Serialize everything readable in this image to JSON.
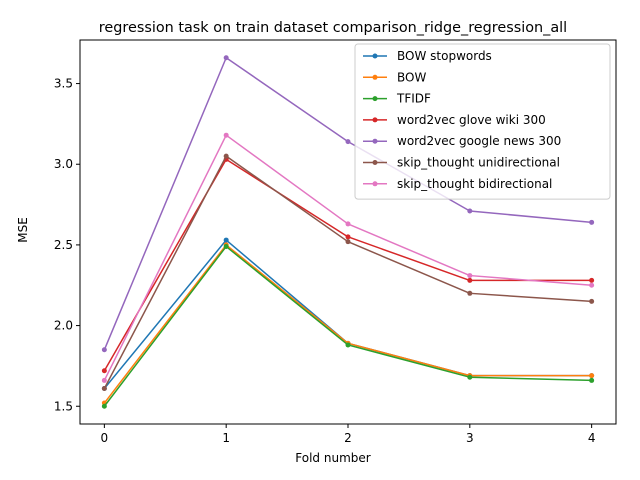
{
  "chart_data": {
    "type": "line",
    "title": "regression task on train dataset comparison_ridge_regression_all",
    "xlabel": "Fold number",
    "ylabel": "MSE",
    "x": [
      0,
      1,
      2,
      3,
      4
    ],
    "xticks": [
      "0",
      "1",
      "2",
      "3",
      "4"
    ],
    "yticks": [
      "1.5",
      "2.0",
      "2.5",
      "3.0",
      "3.5"
    ],
    "xlim": [
      -0.2,
      4.2
    ],
    "ylim": [
      1.39,
      3.77
    ],
    "grid": false,
    "legend_position": "upper right",
    "series": [
      {
        "name": "BOW stopwords",
        "color": "#1f77b4",
        "values": [
          1.61,
          2.53,
          1.89,
          1.69,
          1.69
        ]
      },
      {
        "name": "BOW",
        "color": "#ff7f0e",
        "values": [
          1.52,
          2.5,
          1.89,
          1.69,
          1.69
        ]
      },
      {
        "name": "TFIDF",
        "color": "#2ca02c",
        "values": [
          1.5,
          2.49,
          1.88,
          1.68,
          1.66
        ]
      },
      {
        "name": "word2vec glove wiki 300",
        "color": "#d62728",
        "values": [
          1.72,
          3.03,
          2.55,
          2.28,
          2.28
        ]
      },
      {
        "name": "word2vec google news 300",
        "color": "#9467bd",
        "values": [
          1.85,
          3.66,
          3.14,
          2.71,
          2.64
        ]
      },
      {
        "name": "skip_thought unidirectional",
        "color": "#8c564b",
        "values": [
          1.61,
          3.05,
          2.52,
          2.2,
          2.15
        ]
      },
      {
        "name": "skip_thought bidirectional",
        "color": "#e377c2",
        "values": [
          1.66,
          3.18,
          2.63,
          2.31,
          2.25
        ]
      }
    ]
  }
}
